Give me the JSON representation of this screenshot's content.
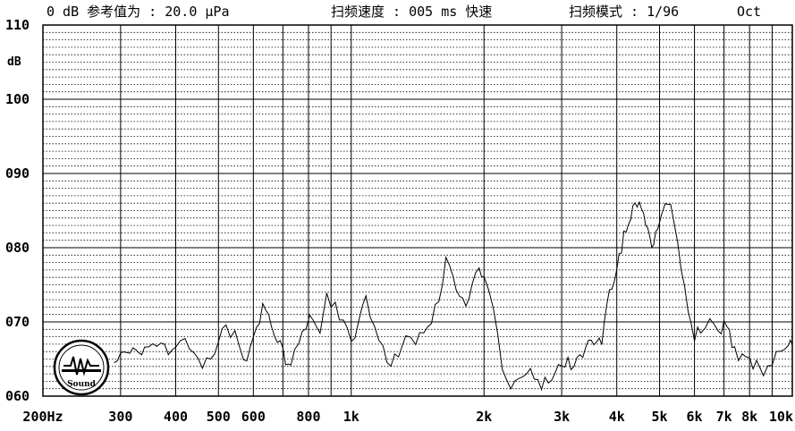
{
  "header": {
    "reference": "0 dB 参考值为 : 20.0 μPa",
    "sweep_speed": "扫频速度 : 005 ms 快速",
    "sweep_mode": "扫频模式 : 1/96",
    "mode_suffix": "Oct"
  },
  "logo": {
    "label": "Sound"
  },
  "chart_data": {
    "type": "line",
    "title": "",
    "xlabel": "",
    "ylabel": "dB",
    "xscale": "log",
    "xlim": [
      200,
      10000
    ],
    "ylim": [
      60,
      110
    ],
    "grid": true,
    "y_ticks": [
      {
        "value": 60,
        "label": "060"
      },
      {
        "value": 70,
        "label": "070"
      },
      {
        "value": 80,
        "label": "080"
      },
      {
        "value": 90,
        "label": "090"
      },
      {
        "value": 100,
        "label": "100"
      },
      {
        "value": 110,
        "label": "110"
      }
    ],
    "x_ticks": [
      {
        "value": 200,
        "label": "200Hz"
      },
      {
        "value": 300,
        "label": "300"
      },
      {
        "value": 400,
        "label": "400"
      },
      {
        "value": 500,
        "label": "500"
      },
      {
        "value": 600,
        "label": "600"
      },
      {
        "value": 800,
        "label": "800"
      },
      {
        "value": 1000,
        "label": "1k"
      },
      {
        "value": 2000,
        "label": "2k"
      },
      {
        "value": 3000,
        "label": "3k"
      },
      {
        "value": 4000,
        "label": "4k"
      },
      {
        "value": 5000,
        "label": "5k"
      },
      {
        "value": 6000,
        "label": "6k"
      },
      {
        "value": 7000,
        "label": "7k"
      },
      {
        "value": 8000,
        "label": "8k"
      },
      {
        "value": 10000,
        "label": "10k"
      }
    ],
    "series": [
      {
        "x": [
          290,
          300,
          310,
          320,
          330,
          340,
          355,
          370,
          385,
          400,
          420,
          440,
          460,
          480,
          500,
          520,
          545,
          570,
          590,
          610,
          630,
          650,
          670,
          690,
          710,
          730,
          760,
          790,
          820,
          850,
          880,
          920,
          960,
          1000,
          1040,
          1080,
          1130,
          1180,
          1230,
          1280,
          1330,
          1400,
          1460,
          1520,
          1580,
          1640,
          1700,
          1760,
          1820,
          1880,
          1950,
          2000,
          2100,
          2200,
          2300,
          2400,
          2500,
          2600,
          2700,
          2800,
          2900,
          3000,
          3100,
          3200,
          3300,
          3400,
          3500,
          3600,
          3700,
          3800,
          3900,
          4000,
          4100,
          4200,
          4300,
          4400,
          4500,
          4600,
          4700,
          4800,
          4900,
          5000,
          5100,
          5200,
          5400,
          5600,
          5800,
          6000,
          6200,
          6500,
          6800,
          7000,
          7200,
          7400,
          7700,
          8000,
          8300,
          8600,
          9000,
          9400,
          9800,
          10000
        ],
        "y": [
          64.5,
          65.0,
          65.8,
          66.0,
          65.5,
          66.2,
          66.5,
          67.0,
          66.2,
          67.0,
          67.8,
          66.0,
          64.5,
          65.0,
          67.5,
          69.2,
          68.0,
          64.5,
          66.0,
          69.0,
          71.8,
          70.5,
          67.5,
          68.0,
          65.0,
          64.8,
          67.5,
          70.0,
          71.0,
          69.0,
          73.0,
          72.0,
          70.0,
          67.0,
          70.0,
          73.0,
          68.5,
          66.0,
          64.5,
          65.5,
          68.5,
          67.0,
          69.0,
          70.5,
          73.0,
          78.0,
          76.0,
          73.0,
          72.0,
          75.0,
          77.0,
          76.0,
          72.0,
          64.0,
          61.5,
          62.5,
          63.5,
          63.0,
          61.5,
          62.5,
          63.0,
          64.0,
          64.5,
          64.0,
          65.5,
          66.5,
          67.0,
          68.0,
          67.5,
          73.0,
          75.0,
          77.5,
          80.0,
          83.0,
          84.5,
          85.5,
          86.0,
          84.0,
          82.5,
          80.0,
          81.5,
          83.0,
          86.0,
          86.5,
          84.0,
          77.5,
          72.0,
          68.0,
          69.0,
          70.5,
          68.0,
          70.0,
          68.5,
          66.0,
          65.0,
          64.5,
          64.0,
          63.5,
          65.0,
          66.5,
          67.5,
          67.0
        ]
      }
    ]
  }
}
